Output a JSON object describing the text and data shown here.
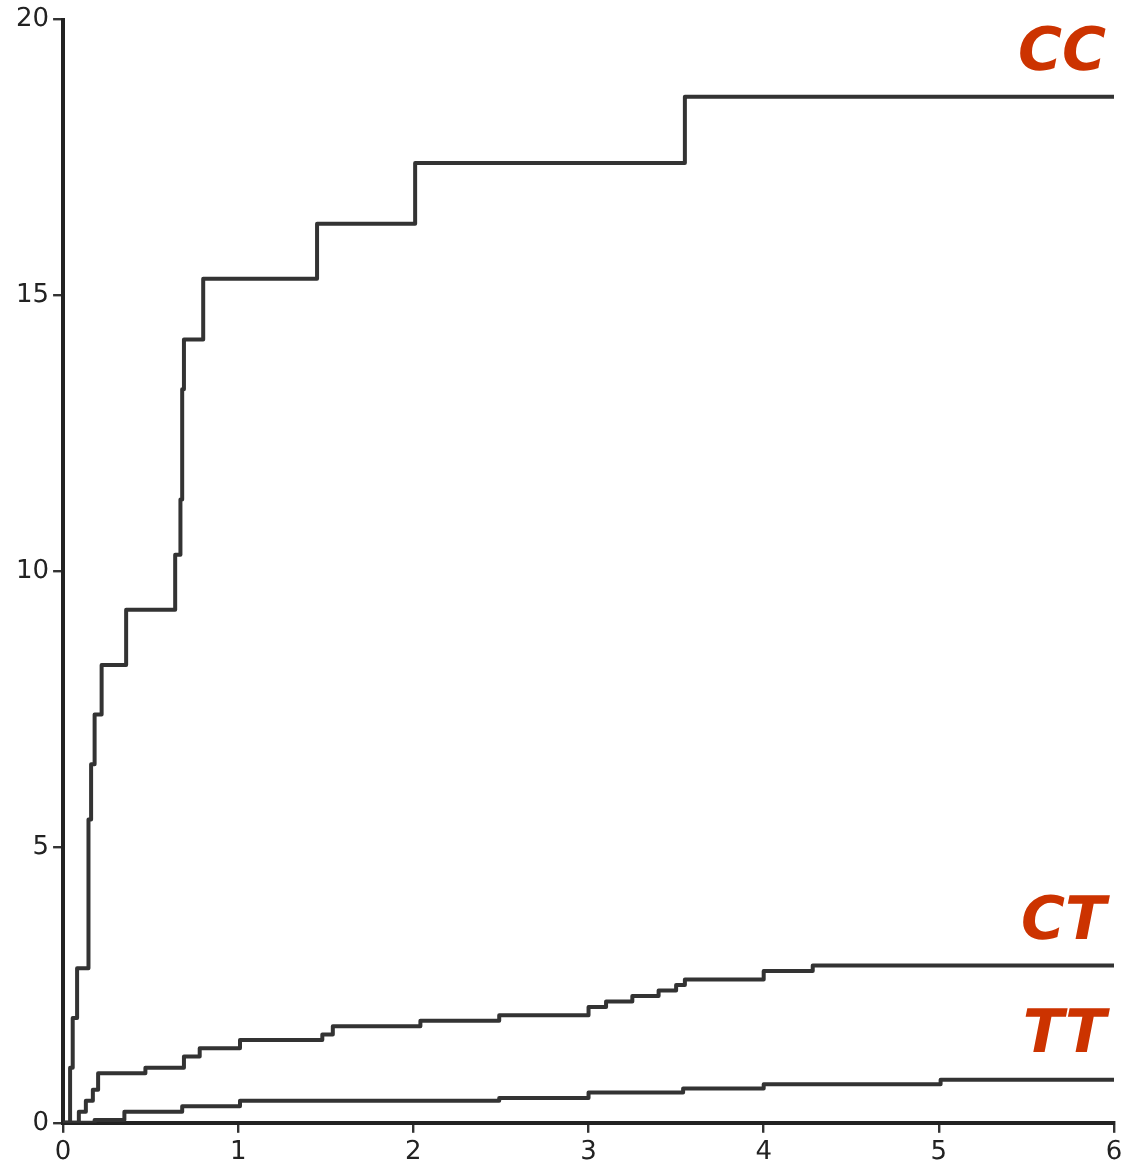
{
  "chart_data": {
    "type": "step",
    "xlim": [
      0,
      6
    ],
    "xticks": [
      0,
      1,
      2,
      3,
      4,
      5,
      6
    ],
    "ylim": [
      0,
      20
    ],
    "yticks": [
      0,
      5,
      10,
      15,
      20
    ],
    "grid": false,
    "legend": false,
    "marker": "none",
    "line_style": "solid",
    "series": [
      {
        "name": "CC",
        "color": "#333333",
        "x": [
          0,
          0.04,
          0.055,
          0.08,
          0.145,
          0.16,
          0.18,
          0.22,
          0.36,
          0.64,
          0.67,
          0.68,
          0.69,
          0.8,
          1.45,
          2.01,
          3.55,
          6
        ],
        "values": [
          0,
          1,
          1.9,
          2.8,
          5.5,
          6.5,
          7.4,
          8.3,
          9.3,
          10.3,
          11.3,
          13.3,
          14.2,
          15.3,
          16.3,
          17.4,
          18.6,
          18.6
        ]
      },
      {
        "name": "CT",
        "color": "#333333",
        "x": [
          0,
          0.09,
          0.13,
          0.17,
          0.2,
          0.47,
          0.69,
          0.78,
          1.01,
          1.48,
          1.54,
          2.04,
          2.49,
          3.0,
          3.1,
          3.25,
          3.4,
          3.5,
          3.55,
          4.0,
          4.28,
          6
        ],
        "values": [
          0,
          0.2,
          0.4,
          0.6,
          0.9,
          1.0,
          1.2,
          1.35,
          1.5,
          1.6,
          1.75,
          1.85,
          1.95,
          2.1,
          2.2,
          2.3,
          2.4,
          2.5,
          2.6,
          2.75,
          2.85,
          2.85
        ]
      },
      {
        "name": "TT",
        "color": "#333333",
        "x": [
          0,
          0.18,
          0.35,
          0.68,
          1.01,
          2.49,
          3.0,
          3.54,
          4.0,
          5.01,
          6
        ],
        "values": [
          0,
          0.05,
          0.2,
          0.3,
          0.4,
          0.45,
          0.55,
          0.62,
          0.7,
          0.78,
          0.8
        ]
      }
    ]
  }
}
